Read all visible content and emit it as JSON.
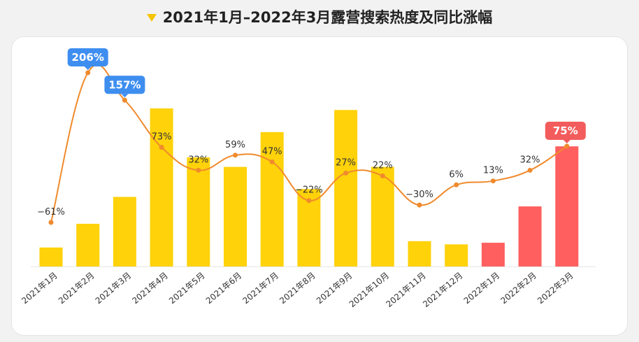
{
  "title": "2021年1月–2022年3月露营搜索热度及同比涨幅",
  "colors": {
    "bar_2021": "#FFD20A",
    "bar_2022": "#FF5F5F",
    "line": "#F08A2C",
    "callout_blue": "#3E8EF0",
    "callout_red": "#F35C5C"
  },
  "chart_data": {
    "type": "bar",
    "categories": [
      "2021年1月",
      "2021年2月",
      "2021年3月",
      "2021年4月",
      "2021年5月",
      "2021年6月",
      "2021年7月",
      "2021年8月",
      "2021年9月",
      "2021年10月",
      "2021年11月",
      "2021年12月",
      "2022年1月",
      "2022年2月",
      "2022年3月"
    ],
    "series": [
      {
        "type": "bar",
        "values": [
          12,
          27,
          44,
          100,
          69,
          63,
          85,
          49,
          99,
          63,
          16,
          14,
          15,
          38,
          76
        ],
        "highlight_from_index": 12
      },
      {
        "type": "line",
        "values": [
          -61,
          206,
          157,
          73,
          32,
          59,
          47,
          -22,
          27,
          22,
          -30,
          6,
          13,
          32,
          75
        ],
        "labels": [
          "−61%",
          "206%",
          "157%",
          "73%",
          "32%",
          "59%",
          "47%",
          "−22%",
          "27%",
          "22%",
          "−30%",
          "6%",
          "13%",
          "32%",
          "75%"
        ],
        "callouts": [
          1,
          2,
          14
        ]
      }
    ],
    "grid": false,
    "legend": "none"
  }
}
